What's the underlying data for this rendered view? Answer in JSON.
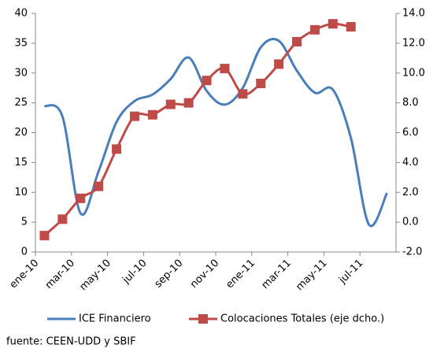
{
  "chart_data": {
    "type": "line",
    "categories": [
      "ene-10",
      null,
      "mar-10",
      null,
      "may-10",
      null,
      "jul-10",
      null,
      "sep-10",
      null,
      "nov-10",
      null,
      "ene-11",
      null,
      "mar-11",
      null,
      "may-11",
      null,
      "jul-11",
      null
    ],
    "series": [
      {
        "name": "ICE Financiero",
        "color": "#4a7ebb",
        "values": [
          24.5,
          22.7,
          6.5,
          13.5,
          21.8,
          25.3,
          26.4,
          29.0,
          32.6,
          27.0,
          24.7,
          27.5,
          34.3,
          35.4,
          30.4,
          26.7,
          27.2,
          19.1,
          4.6,
          9.9
        ]
      },
      {
        "name": "Colocaciones Totales (eje dcho.)",
        "color": "#be4b48",
        "axis": "y2",
        "values": [
          -0.9,
          0.2,
          1.6,
          2.4,
          4.9,
          7.1,
          7.2,
          7.9,
          8.0,
          9.5,
          10.3,
          8.6,
          9.3,
          10.6,
          12.1,
          12.9,
          13.3,
          13.1,
          null,
          null
        ]
      }
    ],
    "ylim": [
      0,
      40
    ],
    "yticks": [
      0,
      5,
      10,
      15,
      20,
      25,
      30,
      35,
      40
    ],
    "y2lim": [
      -2,
      14
    ],
    "y2ticks": [
      {
        "value": -2,
        "label": "-2.0"
      },
      {
        "value": 0,
        "label": "0.0"
      },
      {
        "value": 2,
        "label": "2.0"
      },
      {
        "value": 4,
        "label": "4.0"
      },
      {
        "value": 6,
        "label": "6.0"
      },
      {
        "value": 8,
        "label": "8.0"
      },
      {
        "value": 10,
        "label": "10.0"
      },
      {
        "value": 12,
        "label": "12.0"
      },
      {
        "value": 14,
        "label": "14.0"
      }
    ],
    "grid": false,
    "legend": "bottom",
    "source": "fuente: CEEN-UDD y SBIF"
  }
}
